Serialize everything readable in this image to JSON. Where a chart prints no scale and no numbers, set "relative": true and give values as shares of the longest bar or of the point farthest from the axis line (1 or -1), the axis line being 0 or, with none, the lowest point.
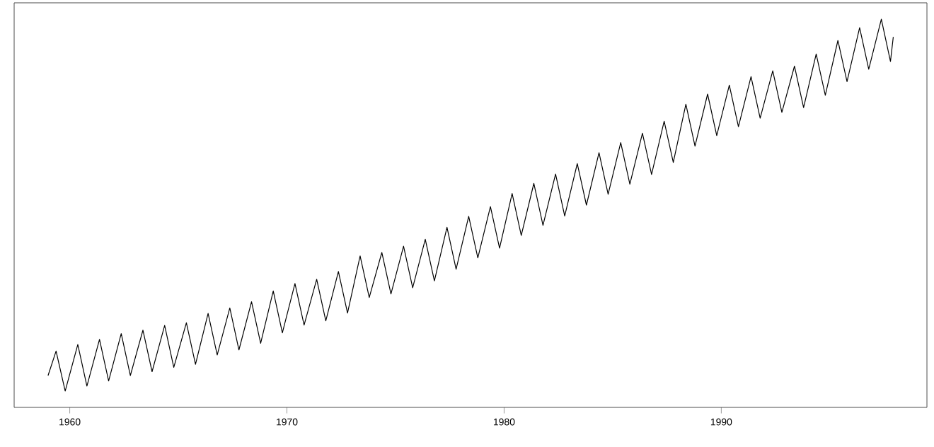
{
  "chart_data": {
    "type": "line",
    "relative": true,
    "tick_labels": "x",
    "grid": false,
    "marker": "none",
    "line_style": "solid",
    "color": "#000000",
    "xlim": [
      1957.44,
      1999.47
    ],
    "xticks": [
      1960,
      1970,
      1980,
      1990
    ],
    "x": [
      1959.0,
      1959.37,
      1959.79,
      1960.37,
      1960.79,
      1961.37,
      1961.79,
      1962.37,
      1962.79,
      1963.37,
      1963.79,
      1964.37,
      1964.79,
      1965.37,
      1965.79,
      1966.37,
      1966.79,
      1967.37,
      1967.79,
      1968.37,
      1968.79,
      1969.37,
      1969.79,
      1970.37,
      1970.79,
      1971.37,
      1971.79,
      1972.37,
      1972.79,
      1973.37,
      1973.79,
      1974.37,
      1974.79,
      1975.37,
      1975.79,
      1976.37,
      1976.79,
      1977.37,
      1977.79,
      1978.37,
      1978.79,
      1979.37,
      1979.79,
      1980.37,
      1980.79,
      1981.37,
      1981.79,
      1982.37,
      1982.79,
      1983.37,
      1983.79,
      1984.37,
      1984.79,
      1985.37,
      1985.79,
      1986.37,
      1986.79,
      1987.37,
      1987.79,
      1988.37,
      1988.79,
      1989.37,
      1989.79,
      1990.37,
      1990.79,
      1991.37,
      1991.79,
      1992.37,
      1992.79,
      1993.37,
      1993.79,
      1994.37,
      1994.79,
      1995.37,
      1995.79,
      1996.37,
      1996.79,
      1997.37,
      1997.79,
      1997.92
    ],
    "values": [
      0.082,
      0.145,
      0.042,
      0.162,
      0.055,
      0.175,
      0.068,
      0.19,
      0.082,
      0.199,
      0.092,
      0.211,
      0.103,
      0.218,
      0.111,
      0.242,
      0.135,
      0.256,
      0.148,
      0.272,
      0.165,
      0.3,
      0.192,
      0.319,
      0.212,
      0.33,
      0.223,
      0.35,
      0.243,
      0.39,
      0.283,
      0.399,
      0.292,
      0.415,
      0.308,
      0.433,
      0.326,
      0.464,
      0.356,
      0.492,
      0.385,
      0.517,
      0.41,
      0.551,
      0.443,
      0.577,
      0.469,
      0.601,
      0.493,
      0.628,
      0.521,
      0.656,
      0.549,
      0.682,
      0.575,
      0.706,
      0.6,
      0.737,
      0.631,
      0.781,
      0.673,
      0.807,
      0.7,
      0.83,
      0.723,
      0.852,
      0.745,
      0.867,
      0.76,
      0.879,
      0.772,
      0.91,
      0.804,
      0.945,
      0.839,
      0.978,
      0.871,
      1.0,
      0.891,
      0.954
    ]
  }
}
